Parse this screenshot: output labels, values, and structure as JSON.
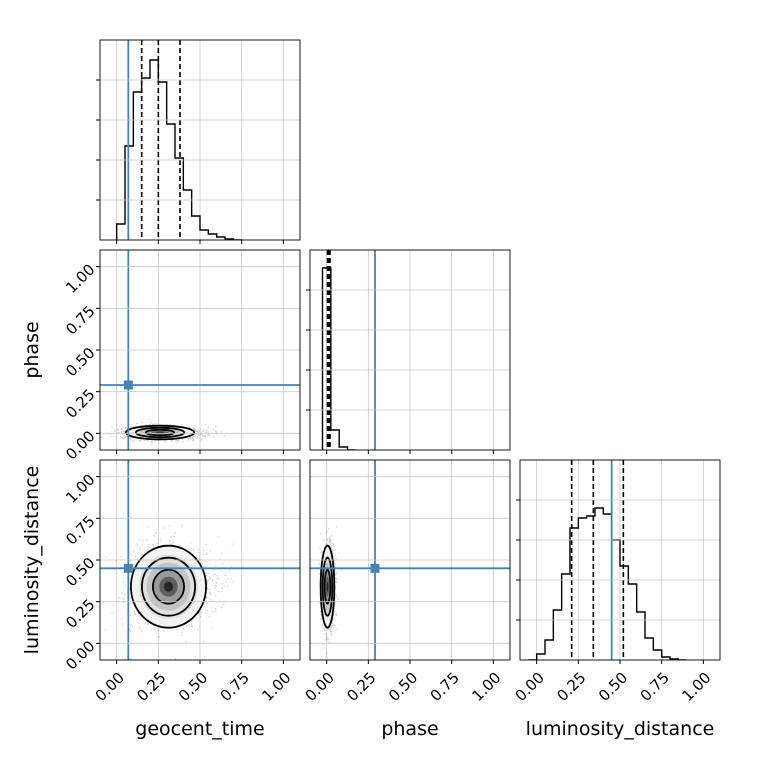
{
  "chart_data": {
    "type": "corner",
    "parameters": [
      "geocent_time",
      "phase",
      "luminosity_distance"
    ],
    "axis_range": [
      -0.1,
      1.1
    ],
    "ticks": [
      0.0,
      0.25,
      0.5,
      0.75,
      1.0
    ],
    "tick_labels": [
      "0.00",
      "0.25",
      "0.50",
      "0.75",
      "1.00"
    ],
    "grid": true,
    "truth_color": "#4682b4",
    "truths": {
      "geocent_time": 0.07,
      "phase": 0.29,
      "luminosity_distance": 0.45
    },
    "quantiles": {
      "geocent_time": [
        0.15,
        0.25,
        0.38
      ],
      "phase": [
        0.005,
        0.012,
        0.02
      ],
      "luminosity_distance": [
        0.21,
        0.34,
        0.52
      ]
    },
    "histograms": {
      "geocent_time": {
        "bin_width": 0.05,
        "bin_starts": [
          0.0,
          0.05,
          0.1,
          0.15,
          0.2,
          0.25,
          0.3,
          0.35,
          0.4,
          0.45,
          0.5,
          0.55,
          0.6,
          0.65,
          0.7
        ],
        "counts": [
          0.08,
          0.47,
          0.74,
          0.81,
          0.9,
          0.79,
          0.58,
          0.41,
          0.25,
          0.12,
          0.05,
          0.03,
          0.015,
          0.005,
          0.0
        ]
      },
      "phase": {
        "bin_width": 0.05,
        "bin_starts": [
          -0.025,
          0.025,
          0.075,
          0.125
        ],
        "counts": [
          0.91,
          0.1,
          0.015,
          0.0
        ]
      },
      "luminosity_distance": {
        "bin_width": 0.05,
        "bin_starts": [
          -0.05,
          0.0,
          0.05,
          0.1,
          0.15,
          0.2,
          0.25,
          0.3,
          0.35,
          0.4,
          0.45,
          0.5,
          0.55,
          0.6,
          0.65,
          0.7,
          0.75,
          0.8,
          0.85
        ],
        "counts": [
          0.0,
          0.03,
          0.1,
          0.25,
          0.43,
          0.66,
          0.71,
          0.72,
          0.76,
          0.73,
          0.6,
          0.47,
          0.38,
          0.24,
          0.11,
          0.05,
          0.015,
          0.005,
          0.0
        ]
      }
    },
    "joint_2d": [
      {
        "x": "geocent_time",
        "y": "phase",
        "center": [
          0.25,
          0.005
        ],
        "spread": [
          0.1,
          0.02
        ]
      },
      {
        "x": "geocent_time",
        "y": "luminosity_distance",
        "center": [
          0.3,
          0.34
        ],
        "spread": [
          0.11,
          0.12
        ]
      },
      {
        "x": "phase",
        "y": "luminosity_distance",
        "center": [
          0.005,
          0.34
        ],
        "spread": [
          0.02,
          0.12
        ]
      }
    ]
  }
}
